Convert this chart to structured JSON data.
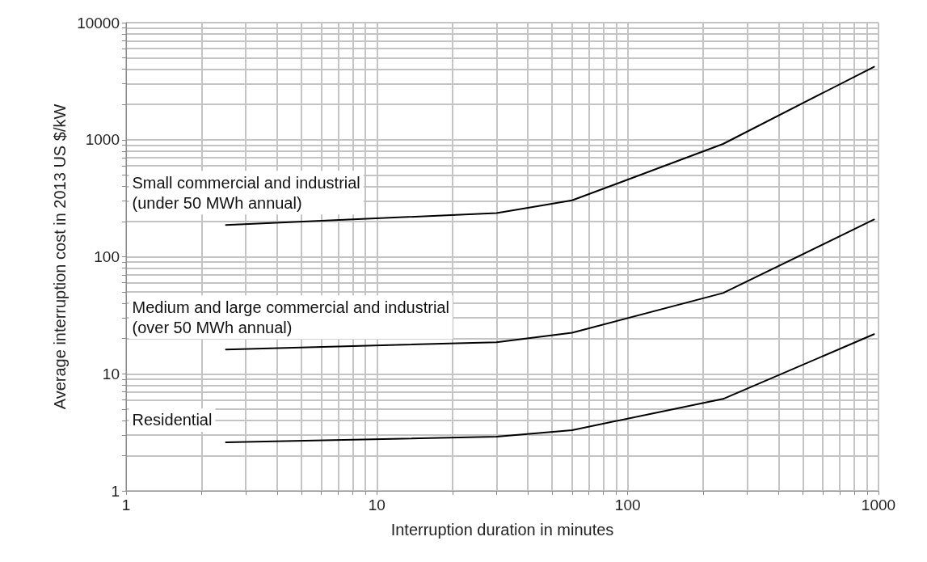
{
  "chart_data": {
    "type": "line",
    "xlabel": "Interruption duration in minutes",
    "ylabel": "Average interruption cost in 2013 US $/kW",
    "log": "xy",
    "grid": true,
    "marker": "none",
    "line_style": "solid",
    "legend": false,
    "xlim": [
      1,
      1000
    ],
    "ylim": [
      1,
      10000
    ],
    "xticks": [
      1,
      {
        "value": 2,
        "label": null
      },
      {
        "value": 3,
        "label": null
      },
      {
        "value": 4,
        "label": null
      },
      {
        "value": 5,
        "label": null
      },
      {
        "value": 6,
        "label": null
      },
      {
        "value": 7,
        "label": null
      },
      {
        "value": 8,
        "label": null
      },
      {
        "value": 9,
        "label": null
      },
      10,
      {
        "value": 20,
        "label": null
      },
      {
        "value": 30,
        "label": null
      },
      {
        "value": 40,
        "label": null
      },
      {
        "value": 50,
        "label": null
      },
      {
        "value": 60,
        "label": null
      },
      {
        "value": 70,
        "label": null
      },
      {
        "value": 80,
        "label": null
      },
      {
        "value": 90,
        "label": null
      },
      100,
      {
        "value": 200,
        "label": null
      },
      {
        "value": 300,
        "label": null
      },
      {
        "value": 400,
        "label": null
      },
      {
        "value": 500,
        "label": null
      },
      {
        "value": 600,
        "label": null
      },
      {
        "value": 700,
        "label": null
      },
      {
        "value": 800,
        "label": null
      },
      {
        "value": 900,
        "label": null
      },
      1000
    ],
    "yticks": [
      1,
      {
        "value": 2,
        "label": null
      },
      {
        "value": 3,
        "label": null
      },
      {
        "value": 4,
        "label": null
      },
      {
        "value": 5,
        "label": null
      },
      {
        "value": 6,
        "label": null
      },
      {
        "value": 7,
        "label": null
      },
      {
        "value": 8,
        "label": null
      },
      {
        "value": 9,
        "label": null
      },
      10,
      {
        "value": 20,
        "label": null
      },
      {
        "value": 30,
        "label": null
      },
      {
        "value": 40,
        "label": null
      },
      {
        "value": 50,
        "label": null
      },
      {
        "value": 60,
        "label": null
      },
      {
        "value": 70,
        "label": null
      },
      {
        "value": 80,
        "label": null
      },
      {
        "value": 90,
        "label": null
      },
      100,
      {
        "value": 200,
        "label": null
      },
      {
        "value": 300,
        "label": null
      },
      {
        "value": 400,
        "label": null
      },
      {
        "value": 500,
        "label": null
      },
      {
        "value": 600,
        "label": null
      },
      {
        "value": 700,
        "label": null
      },
      {
        "value": 800,
        "label": null
      },
      {
        "value": 900,
        "label": null
      },
      1000,
      {
        "value": 2000,
        "label": null
      },
      {
        "value": 3000,
        "label": null
      },
      {
        "value": 4000,
        "label": null
      },
      {
        "value": 5000,
        "label": null
      },
      {
        "value": 6000,
        "label": null
      },
      {
        "value": 7000,
        "label": null
      },
      {
        "value": 8000,
        "label": null
      },
      {
        "value": 9000,
        "label": null
      },
      10000
    ],
    "x": [
      2.5,
      30,
      60,
      240,
      960
    ],
    "series": [
      {
        "name": "Small commercial and industrial\n(under 50 MWh annual)",
        "color": "#000000",
        "values": [
          187,
          236,
          303,
          920,
          4200
        ]
      },
      {
        "name": "Medium and large commercial and industrial\n(over 50 MWh annual)",
        "color": "#000000",
        "values": [
          16.1,
          18.6,
          22.4,
          49,
          208
        ]
      },
      {
        "name": "Residential",
        "color": "#000000",
        "values": [
          2.6,
          2.9,
          3.3,
          6.1,
          21.8
        ]
      }
    ]
  }
}
